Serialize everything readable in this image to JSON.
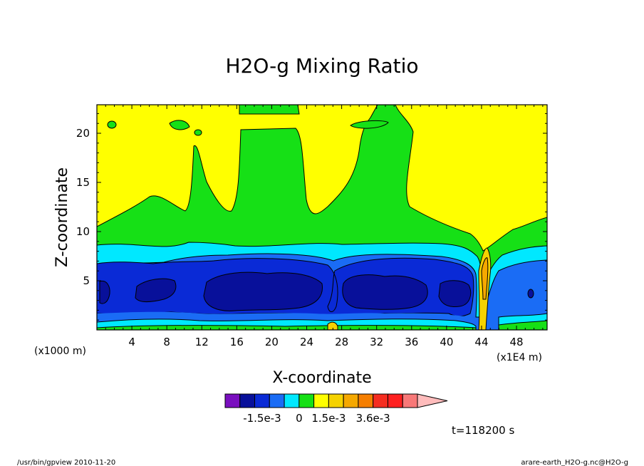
{
  "chart_data": {
    "type": "contour",
    "title": "H2O-g Mixing Ratio",
    "xlabel": "X-coordinate",
    "ylabel": "Z-coordinate",
    "x_unit_left": "(x1000 m)",
    "x_unit_right": "(x1E4 m)",
    "x_ticks": [
      "4",
      "8",
      "12",
      "16",
      "20",
      "24",
      "28",
      "32",
      "36",
      "40",
      "44",
      "48"
    ],
    "x_tick_values": [
      4,
      8,
      12,
      16,
      20,
      24,
      28,
      32,
      36,
      40,
      44,
      48
    ],
    "y_ticks": [
      "5",
      "10",
      "15",
      "20"
    ],
    "y_tick_values": [
      5,
      10,
      15,
      20
    ],
    "xlim": [
      0,
      51.5
    ],
    "ylim": [
      0,
      22.9
    ],
    "colorbar": {
      "colors": [
        "#7a0fbf",
        "#08109a",
        "#0a2ad6",
        "#1a6cf5",
        "#00e8ff",
        "#16e016",
        "#ffff00",
        "#f5d200",
        "#f5a800",
        "#f57e00",
        "#f52d20",
        "#ff2020",
        "#f87878",
        "#ffbcbc"
      ],
      "labels": [
        "-1.5e-3",
        "0",
        "1.5e-3",
        "3.6e-3"
      ]
    },
    "time_label": "t=118200 s"
  },
  "footer": {
    "left": "/usr/bin/gpview  2010-11-20",
    "right": "arare-earth_H2O-g.nc@H2O-g"
  }
}
